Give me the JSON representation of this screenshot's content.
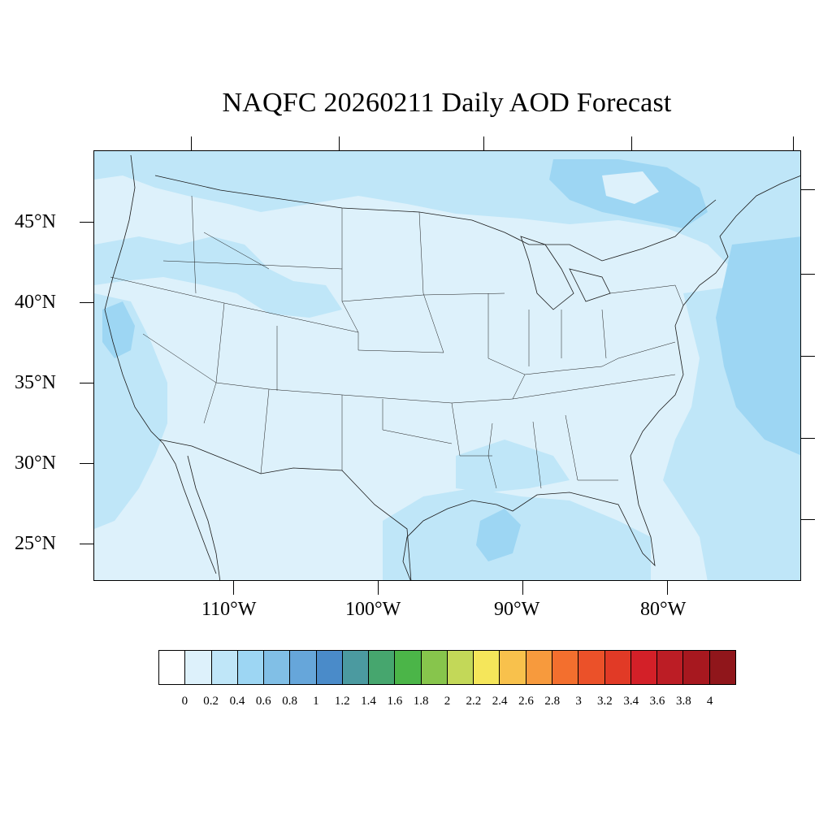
{
  "title": "NAQFC 20260211 Daily AOD Forecast",
  "latitude_labels": [
    "45°N",
    "40°N",
    "35°N",
    "30°N",
    "25°N"
  ],
  "longitude_labels": [
    "110°W",
    "100°W",
    "90°W",
    "80°W"
  ],
  "colorbar": {
    "labels": [
      "0",
      "0.2",
      "0.4",
      "0.6",
      "0.8",
      "1",
      "1.2",
      "1.4",
      "1.6",
      "1.8",
      "2",
      "2.2",
      "2.4",
      "2.6",
      "2.8",
      "3",
      "3.2",
      "3.4",
      "3.6",
      "3.8",
      "4"
    ],
    "colors": [
      "#ffffff",
      "#ddf1fb",
      "#bfe6f8",
      "#9dd6f3",
      "#81bfe6",
      "#66a6da",
      "#4a8bc9",
      "#4b9aa0",
      "#46a66e",
      "#4bb548",
      "#87c54c",
      "#c3d858",
      "#f5e65a",
      "#f8c14c",
      "#f79a3d",
      "#f36f2e",
      "#eb5129",
      "#e13a26",
      "#d32028",
      "#bc1d25",
      "#a7181f",
      "#90161b"
    ]
  },
  "map_colors": {
    "background": "#ddf1fb",
    "light_band": "#bfe6f8",
    "medium_band": "#9dd6f3",
    "boundary": "#1a1a1a"
  }
}
